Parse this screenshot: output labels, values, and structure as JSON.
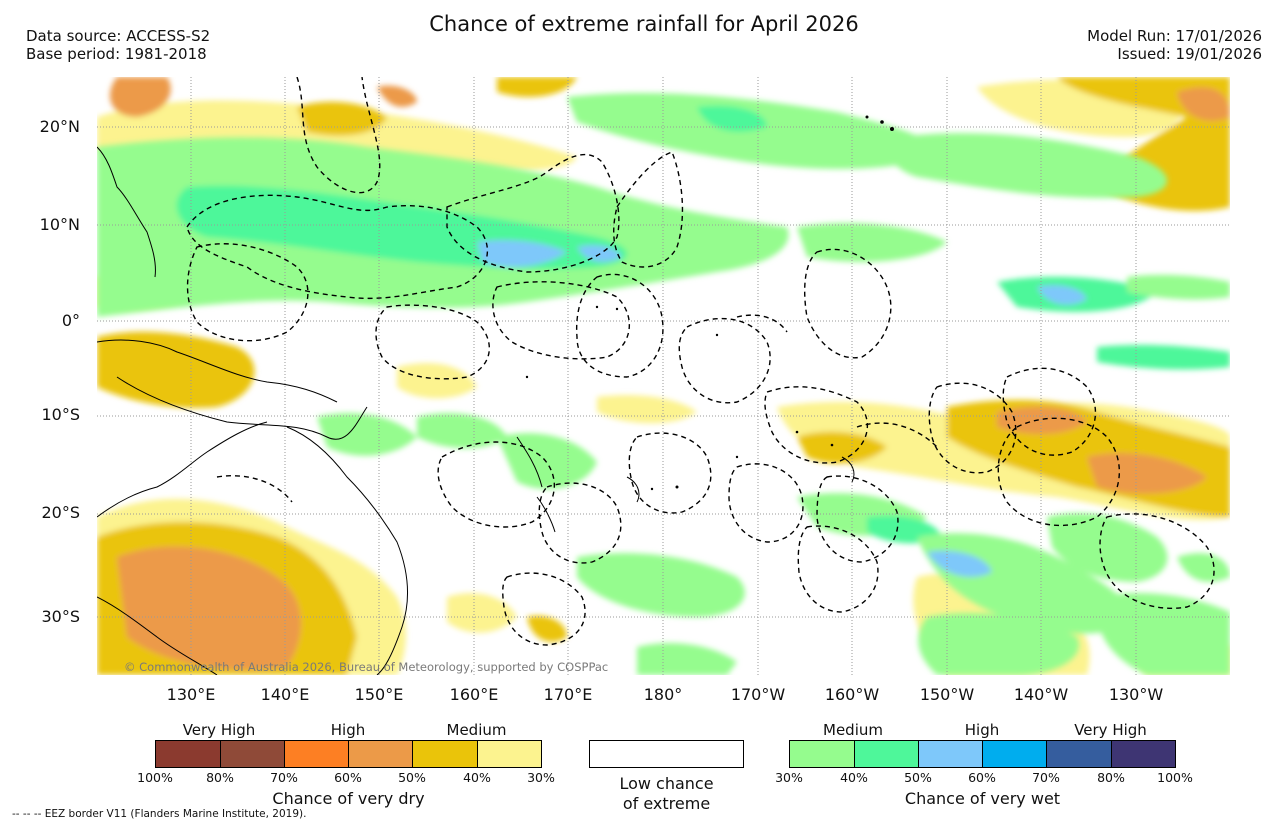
{
  "header": {
    "title": "Chance of extreme rainfall for April 2026",
    "data_source": "Data source: ACCESS-S2",
    "base_period": "Base period: 1981-2018",
    "model_run": "Model Run: 17/01/2026",
    "issued": "Issued: 19/01/2026"
  },
  "map": {
    "lat_labels": [
      "20°N",
      "10°N",
      "0°",
      "10°S",
      "20°S",
      "30°S"
    ],
    "lon_labels": [
      "130°E",
      "140°E",
      "150°E",
      "160°E",
      "170°E",
      "180°",
      "170°W",
      "160°W",
      "150°W",
      "140°W",
      "130°W"
    ],
    "credit": "© Commonwealth of Australia 2026, Bureau of Meteorology, supported by COSPPac"
  },
  "legend_dry": {
    "group_labels": [
      "Very High",
      "High",
      "Medium"
    ],
    "colors": [
      "#8b3a2f",
      "#8f4a38",
      "#fd7f23",
      "#ec9a48",
      "#eac40a",
      "#fcf38f"
    ],
    "ticks": [
      "100%",
      "80%",
      "70%",
      "60%",
      "50%",
      "40%",
      "30%"
    ],
    "caption": "Chance of very dry"
  },
  "legend_low": {
    "line1": "Low chance",
    "line2": "of extreme",
    "color": "#ffffff"
  },
  "legend_wet": {
    "group_labels": [
      "Medium",
      "High",
      "Very High"
    ],
    "colors": [
      "#95fc8e",
      "#4ef79a",
      "#7ec8fa",
      "#00adee",
      "#355d9e",
      "#3e3573"
    ],
    "ticks": [
      "30%",
      "40%",
      "50%",
      "60%",
      "70%",
      "80%",
      "100%"
    ],
    "caption": "Chance of very wet"
  },
  "footnote": "-- -- -- EEZ border V11 (Flanders Marine Institute, 2019)."
}
